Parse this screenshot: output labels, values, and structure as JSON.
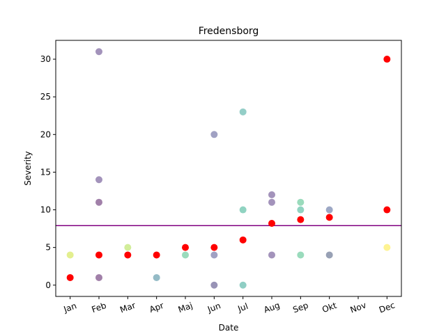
{
  "chart_data": {
    "type": "scatter",
    "title": "Fredensborg",
    "xlabel": "Date",
    "ylabel": "Severity",
    "x_tick_labels": [
      "Jan",
      "Feb",
      "Mar",
      "Apr",
      "Maj",
      "Jun",
      "Jul",
      "Aug",
      "Sep",
      "Okt",
      "Nov",
      "Dec"
    ],
    "y_ticks": [
      0,
      5,
      10,
      15,
      20,
      25,
      30
    ],
    "xlim": [
      0.5,
      12.5
    ],
    "ylim": [
      -1.5,
      32.5
    ],
    "grid": false,
    "reference_line": {
      "y": 7.9,
      "color": "#800080"
    },
    "points": [
      {
        "month": 1,
        "severity": 4,
        "color": "#c7e020"
      },
      {
        "month": 2,
        "severity": 31,
        "color": "#482878"
      },
      {
        "month": 2,
        "severity": 14,
        "color": "#482878"
      },
      {
        "month": 2,
        "severity": 11,
        "color": "#440154"
      },
      {
        "month": 2,
        "severity": 1,
        "color": "#440154"
      },
      {
        "month": 3,
        "severity": 5,
        "color": "#a5db36"
      },
      {
        "month": 4,
        "severity": 1,
        "color": "#2a788e"
      },
      {
        "month": 5,
        "severity": 4,
        "color": "#35b779"
      },
      {
        "month": 6,
        "severity": 20,
        "color": "#414487"
      },
      {
        "month": 6,
        "severity": 4,
        "color": "#414487"
      },
      {
        "month": 6,
        "severity": 0,
        "color": "#31286e"
      },
      {
        "month": 7,
        "severity": 23,
        "color": "#2a9d8f"
      },
      {
        "month": 7,
        "severity": 10,
        "color": "#22a884"
      },
      {
        "month": 7,
        "severity": 0,
        "color": "#1f9e89"
      },
      {
        "month": 8,
        "severity": 12,
        "color": "#482878"
      },
      {
        "month": 8,
        "severity": 11,
        "color": "#482878"
      },
      {
        "month": 8,
        "severity": 4,
        "color": "#482878"
      },
      {
        "month": 9,
        "severity": 11,
        "color": "#35b779"
      },
      {
        "month": 9,
        "severity": 10,
        "color": "#22a884"
      },
      {
        "month": 9,
        "severity": 4,
        "color": "#35b779"
      },
      {
        "month": 10,
        "severity": 10,
        "color": "#3b528b"
      },
      {
        "month": 10,
        "severity": 4,
        "color": "#31446b"
      },
      {
        "month": 12,
        "severity": 5,
        "color": "#fde725"
      }
    ],
    "monthly_average": [
      {
        "month": 1,
        "severity": 1
      },
      {
        "month": 2,
        "severity": 4
      },
      {
        "month": 3,
        "severity": 4
      },
      {
        "month": 4,
        "severity": 4
      },
      {
        "month": 5,
        "severity": 5
      },
      {
        "month": 6,
        "severity": 5
      },
      {
        "month": 7,
        "severity": 6
      },
      {
        "month": 8,
        "severity": 8.2
      },
      {
        "month": 9,
        "severity": 8.7
      },
      {
        "month": 10,
        "severity": 9
      },
      {
        "month": 12,
        "severity": 30
      },
      {
        "month": 12,
        "severity": 10
      }
    ],
    "average_color": "#ff0000"
  }
}
